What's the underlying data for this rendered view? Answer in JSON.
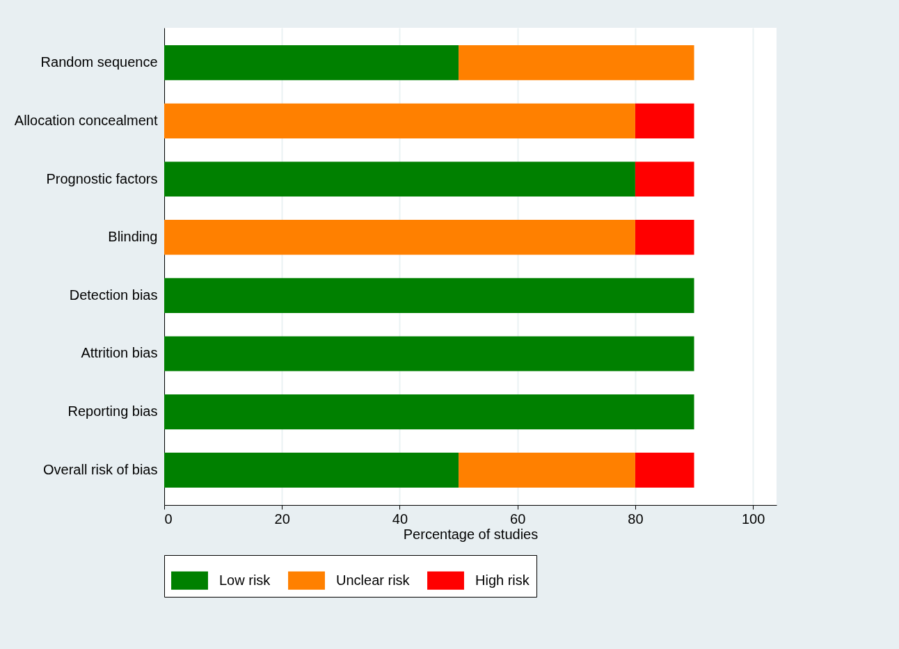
{
  "chart_data": {
    "type": "bar",
    "orientation": "horizontal",
    "stacked": true,
    "xlabel": "Percentage of studies",
    "categories": [
      "Random sequence",
      "Allocation concealment",
      "Prognostic factors",
      "Blinding",
      "Detection bias",
      "Attrition bias",
      "Reporting bias",
      "Overall risk of bias"
    ],
    "series": [
      {
        "name": "Low risk",
        "color": "#008000",
        "values": [
          50,
          0,
          80,
          0,
          90,
          90,
          90,
          50
        ]
      },
      {
        "name": "Unclear risk",
        "color": "#ff8000",
        "values": [
          40,
          80,
          0,
          80,
          0,
          0,
          0,
          30
        ]
      },
      {
        "name": "High risk",
        "color": "#ff0000",
        "values": [
          0,
          10,
          10,
          10,
          0,
          0,
          0,
          10
        ]
      }
    ],
    "xlim": [
      0,
      104
    ],
    "xticks": [
      0,
      20,
      40,
      60,
      80,
      100
    ],
    "grid": "x",
    "legend": "bottom"
  }
}
